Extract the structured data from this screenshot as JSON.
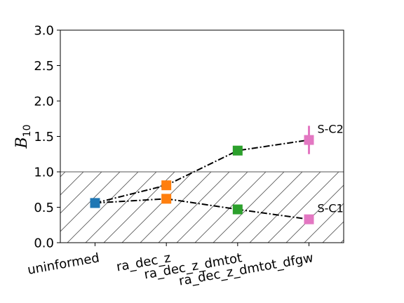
{
  "chart_data": {
    "type": "line",
    "title": "",
    "xlabel": "",
    "ylabel": "B",
    "ylabel_sub": "10",
    "categories": [
      "uninformed",
      "ra_dec_z",
      "ra_dec_z_dmtot",
      "ra_dec_z_dmtot_dfgw"
    ],
    "ylim": [
      0,
      3.0
    ],
    "yticks": [
      "0.0",
      "0.5",
      "1.0",
      "1.5",
      "2.0",
      "2.5",
      "3.0"
    ],
    "threshold": 1.0,
    "hatched_region": [
      0,
      1.0
    ],
    "point_colors": [
      "#1f77b4",
      "#ff7f0e",
      "#2ca02c",
      "#e377c2"
    ],
    "series": [
      {
        "values": [
          0.56,
          0.81,
          1.3,
          1.45
        ],
        "error": [
          0,
          0,
          0,
          0.2
        ]
      },
      {
        "values": [
          0.56,
          0.62,
          0.47,
          0.33
        ],
        "error": [
          0,
          0,
          0,
          0
        ]
      }
    ],
    "annotations": [
      {
        "text": "S-C2",
        "series": 0,
        "index": 3
      },
      {
        "text": "S-C1",
        "series": 1,
        "index": 3
      }
    ]
  }
}
